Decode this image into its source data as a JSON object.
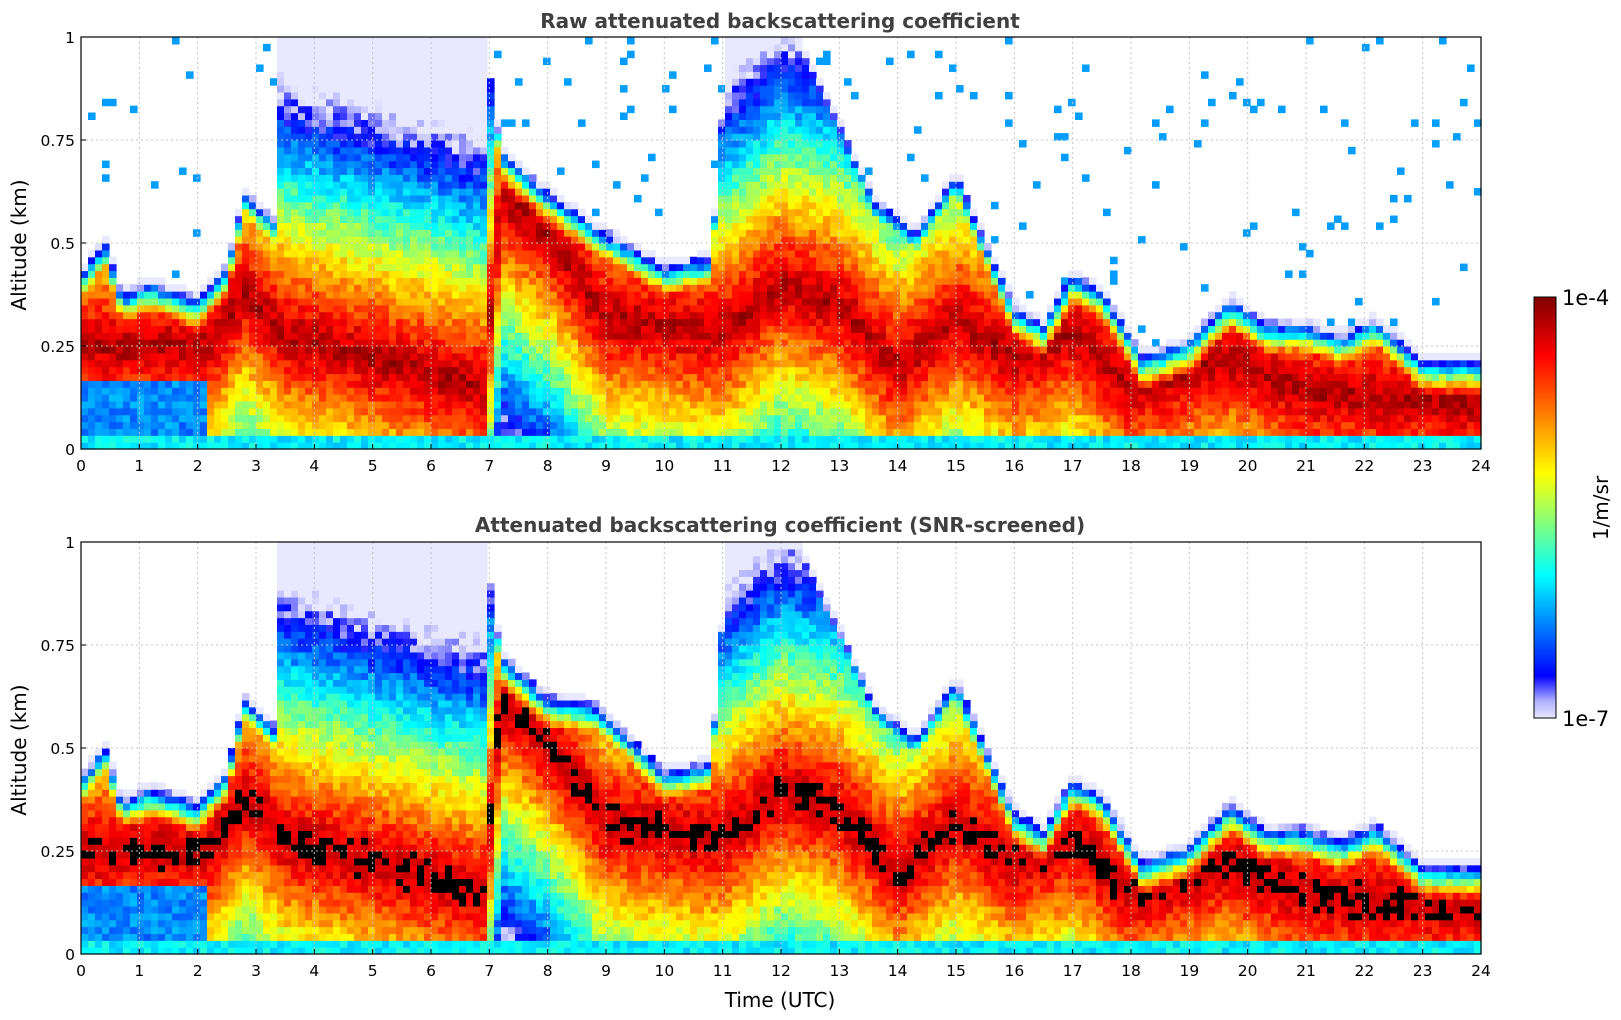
{
  "chart_data": [
    {
      "type": "heatmap",
      "title": "Raw attenuated backscattering coefficient",
      "xlabel": "",
      "ylabel": "Altitude (km)",
      "xlim": [
        0,
        24
      ],
      "ylim": [
        0,
        1
      ],
      "xticks": [
        "0",
        "1",
        "2",
        "3",
        "4",
        "5",
        "6",
        "7",
        "8",
        "9",
        "10",
        "11",
        "12",
        "13",
        "14",
        "15",
        "16",
        "17",
        "18",
        "19",
        "20",
        "21",
        "22",
        "23",
        "24"
      ],
      "yticks": [
        "0",
        "0.25",
        "0.5",
        "0.75",
        "1"
      ],
      "grid": true,
      "screened": false,
      "layer_top_km": [
        [
          0.0,
          0.42
        ],
        [
          0.4,
          0.5
        ],
        [
          0.7,
          0.37
        ],
        [
          1.2,
          0.4
        ],
        [
          2.0,
          0.36
        ],
        [
          2.5,
          0.44
        ],
        [
          2.8,
          0.62
        ],
        [
          3.3,
          0.55
        ],
        [
          3.4,
          1.0
        ],
        [
          6.9,
          1.0
        ],
        [
          7.2,
          0.72
        ],
        [
          8.0,
          0.62
        ],
        [
          9.0,
          0.52
        ],
        [
          10.0,
          0.44
        ],
        [
          10.8,
          0.46
        ],
        [
          11.1,
          1.0
        ],
        [
          12.2,
          1.0
        ],
        [
          13.0,
          0.78
        ],
        [
          13.6,
          0.6
        ],
        [
          14.3,
          0.52
        ],
        [
          15.0,
          0.66
        ],
        [
          16.0,
          0.34
        ],
        [
          16.5,
          0.3
        ],
        [
          17.0,
          0.42
        ],
        [
          17.5,
          0.38
        ],
        [
          18.2,
          0.22
        ],
        [
          19.0,
          0.26
        ],
        [
          19.7,
          0.36
        ],
        [
          20.3,
          0.3
        ],
        [
          21.0,
          0.3
        ],
        [
          21.6,
          0.27
        ],
        [
          22.2,
          0.31
        ],
        [
          23.0,
          0.21
        ],
        [
          24.0,
          0.21
        ]
      ],
      "peak_altitude_km": [
        [
          0.0,
          0.25
        ],
        [
          2.2,
          0.25
        ],
        [
          2.8,
          0.38
        ],
        [
          3.5,
          0.28
        ],
        [
          6.9,
          0.15
        ],
        [
          7.2,
          0.62
        ],
        [
          8.0,
          0.52
        ],
        [
          9.0,
          0.32
        ],
        [
          10.0,
          0.3
        ],
        [
          11.0,
          0.28
        ],
        [
          12.0,
          0.4
        ],
        [
          13.0,
          0.35
        ],
        [
          14.0,
          0.2
        ],
        [
          15.0,
          0.32
        ],
        [
          16.0,
          0.22
        ],
        [
          17.0,
          0.28
        ],
        [
          18.0,
          0.15
        ],
        [
          19.7,
          0.22
        ],
        [
          21.0,
          0.14
        ],
        [
          24.0,
          0.11
        ]
      ]
    },
    {
      "type": "heatmap",
      "title": "Attenuated backscattering coefficient (SNR-screened)",
      "xlabel": "Time (UTC)",
      "ylabel": "Altitude (km)",
      "xlim": [
        0,
        24
      ],
      "ylim": [
        0,
        1
      ],
      "xticks": [
        "0",
        "1",
        "2",
        "3",
        "4",
        "5",
        "6",
        "7",
        "8",
        "9",
        "10",
        "11",
        "12",
        "13",
        "14",
        "15",
        "16",
        "17",
        "18",
        "19",
        "20",
        "21",
        "22",
        "23",
        "24"
      ],
      "yticks": [
        "0",
        "0.25",
        "0.5",
        "0.75",
        "1"
      ],
      "grid": true,
      "screened": true,
      "layer_top_km": [
        [
          0.0,
          0.42
        ],
        [
          0.4,
          0.5
        ],
        [
          0.7,
          0.37
        ],
        [
          1.2,
          0.4
        ],
        [
          2.0,
          0.36
        ],
        [
          2.5,
          0.44
        ],
        [
          2.8,
          0.62
        ],
        [
          3.3,
          0.55
        ],
        [
          3.4,
          1.0
        ],
        [
          6.9,
          1.0
        ],
        [
          7.2,
          0.72
        ],
        [
          8.0,
          0.62
        ],
        [
          8.8,
          0.6
        ],
        [
          9.0,
          0.58
        ],
        [
          10.0,
          0.44
        ],
        [
          10.8,
          0.46
        ],
        [
          11.1,
          1.0
        ],
        [
          12.2,
          1.0
        ],
        [
          13.0,
          0.78
        ],
        [
          13.6,
          0.6
        ],
        [
          14.3,
          0.52
        ],
        [
          15.0,
          0.66
        ],
        [
          16.0,
          0.34
        ],
        [
          16.5,
          0.3
        ],
        [
          17.0,
          0.42
        ],
        [
          17.5,
          0.38
        ],
        [
          18.2,
          0.22
        ],
        [
          19.0,
          0.26
        ],
        [
          19.7,
          0.36
        ],
        [
          20.3,
          0.3
        ],
        [
          21.0,
          0.3
        ],
        [
          21.6,
          0.27
        ],
        [
          22.2,
          0.31
        ],
        [
          23.0,
          0.21
        ],
        [
          24.0,
          0.21
        ]
      ],
      "peak_altitude_km": [
        [
          0.0,
          0.25
        ],
        [
          2.2,
          0.25
        ],
        [
          2.8,
          0.38
        ],
        [
          3.5,
          0.28
        ],
        [
          6.9,
          0.15
        ],
        [
          7.2,
          0.62
        ],
        [
          8.0,
          0.52
        ],
        [
          9.0,
          0.32
        ],
        [
          10.0,
          0.3
        ],
        [
          11.0,
          0.28
        ],
        [
          12.0,
          0.4
        ],
        [
          13.0,
          0.35
        ],
        [
          14.0,
          0.2
        ],
        [
          15.0,
          0.32
        ],
        [
          16.0,
          0.22
        ],
        [
          17.0,
          0.28
        ],
        [
          18.0,
          0.15
        ],
        [
          19.7,
          0.22
        ],
        [
          21.0,
          0.14
        ],
        [
          24.0,
          0.11
        ]
      ]
    }
  ],
  "colorbar": {
    "max_label": "1e-4",
    "min_label": "1e-7",
    "unit": "1/m/sr",
    "colormap": "jet",
    "colors": [
      "#e8e8ff",
      "#0000ff",
      "#00a0ff",
      "#00ffff",
      "#80ff80",
      "#ffff00",
      "#ff8000",
      "#ff0000",
      "#800000"
    ]
  }
}
